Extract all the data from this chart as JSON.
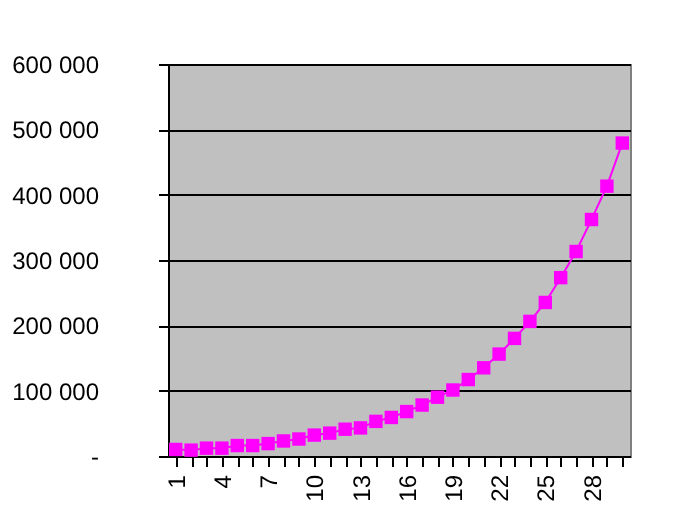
{
  "chart_data": {
    "type": "line",
    "categories": [
      "1",
      null,
      null,
      "4",
      null,
      null,
      "7",
      null,
      null,
      "10",
      null,
      null,
      "13",
      null,
      null,
      "16",
      null,
      null,
      "19",
      null,
      null,
      "22",
      null,
      null,
      "25",
      null,
      null,
      "28",
      null,
      null
    ],
    "series": [
      {
        "color": "#ff00ff",
        "values": [
          10000,
          9000,
          12000,
          12000,
          16000,
          16000,
          19000,
          23000,
          26000,
          32000,
          35000,
          41000,
          43000,
          53000,
          59000,
          68000,
          78000,
          90000,
          101000,
          117000,
          135000,
          156000,
          180000,
          206000,
          235000,
          273000,
          313000,
          362000,
          413000,
          479000
        ]
      }
    ],
    "ylim": [
      0,
      600000
    ],
    "yticks": [
      {
        "value": 0,
        "label": "-"
      },
      {
        "value": 100000,
        "label": "100 000"
      },
      {
        "value": 200000,
        "label": "200 000"
      },
      {
        "value": 300000,
        "label": "300 000"
      },
      {
        "value": 400000,
        "label": "400 000"
      },
      {
        "value": 500000,
        "label": "500 000"
      },
      {
        "value": 600000,
        "label": "600 000"
      }
    ],
    "grid": "y",
    "marker": "square",
    "line_style": "solid"
  }
}
